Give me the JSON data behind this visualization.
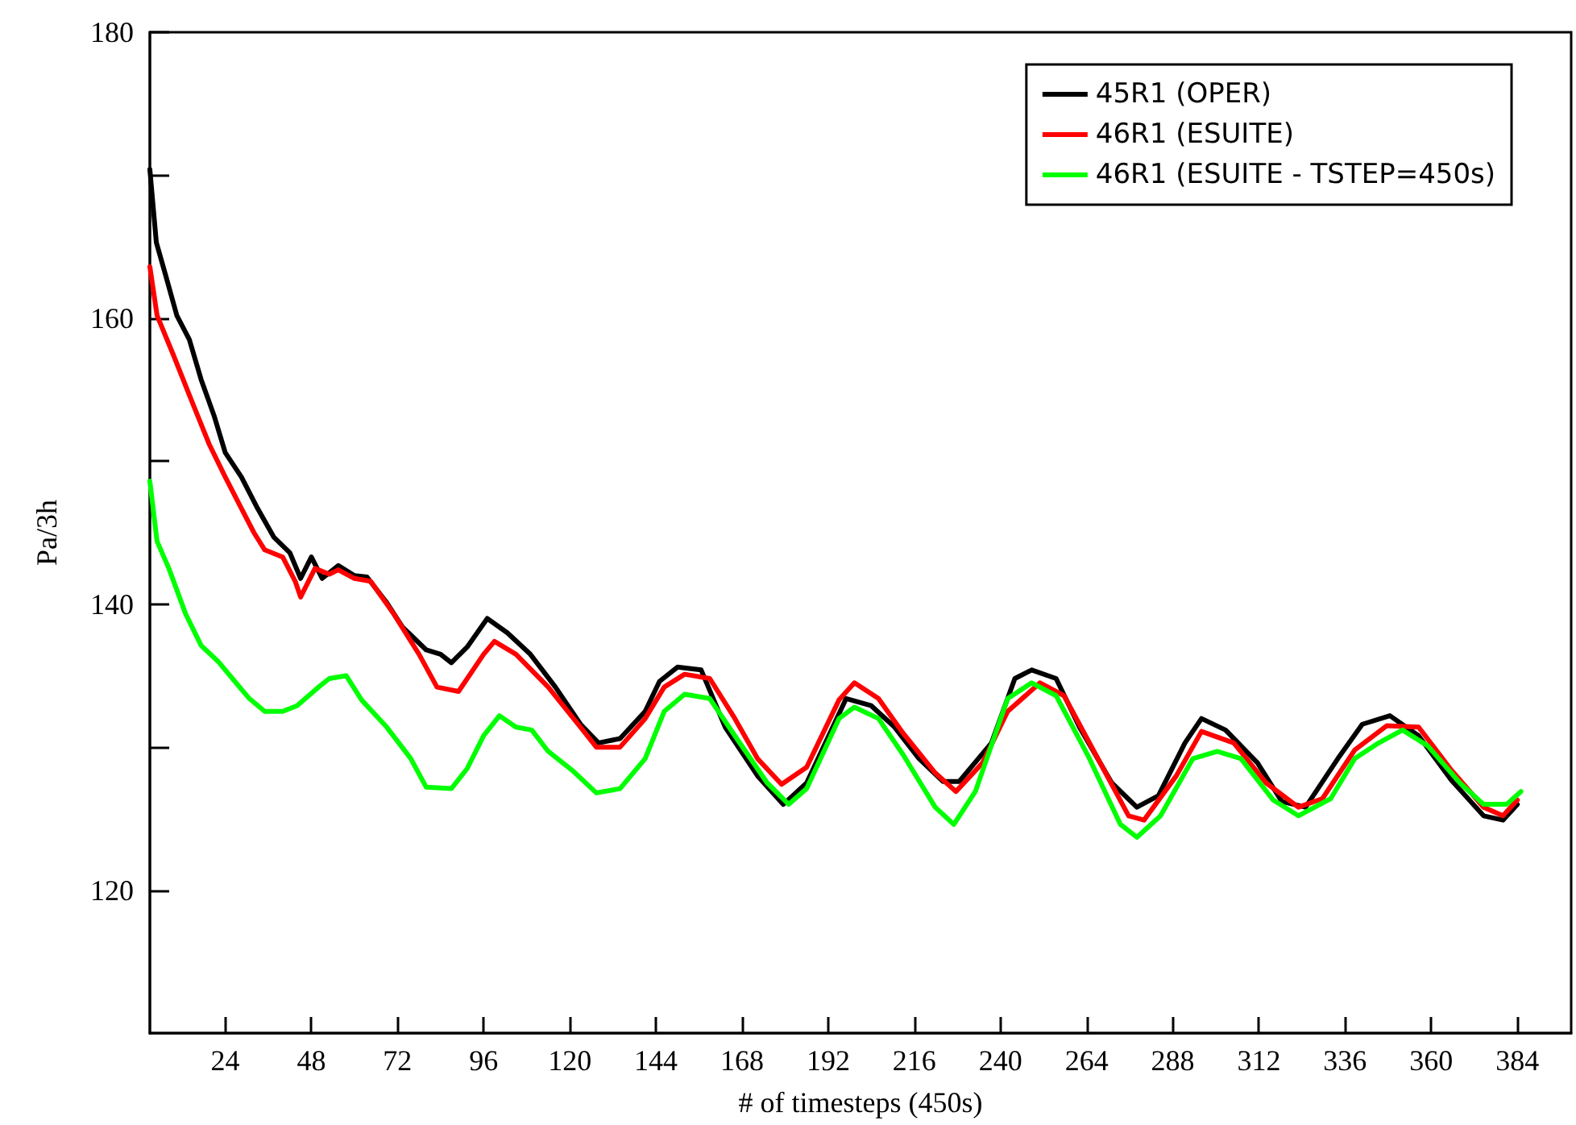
{
  "chart_data": {
    "type": "line",
    "xlabel": "# of timesteps (450s)",
    "ylabel": "Pa/3h",
    "xlim": [
      3,
      399
    ],
    "xticks": [
      24,
      48,
      72,
      96,
      120,
      144,
      168,
      192,
      216,
      240,
      264,
      288,
      312,
      336,
      360,
      384
    ],
    "ylim": [
      110,
      180
    ],
    "yticks": [
      120,
      {
        "value": 130,
        "label": null
      },
      140,
      {
        "value": 150,
        "label": null
      },
      160,
      {
        "value": 170,
        "label": null
      },
      180
    ],
    "grid": false,
    "legend": "top right",
    "marker": "none",
    "line_style": "solid",
    "series": [
      {
        "name": "45R1 (OPER)",
        "color": "#000000",
        "x": [
          3,
          4.8,
          7.4,
          10.5,
          14,
          17.3,
          21,
          24,
          28.5,
          33,
          37.5,
          42,
          45,
          48,
          51,
          55.5,
          60,
          63.5,
          69,
          73.4,
          80,
          84,
          87,
          91.4,
          97,
          102.6,
          109,
          116,
          123,
          128,
          134,
          141,
          145,
          150,
          156.6,
          163.3,
          172.3,
          179.5,
          186,
          197,
          204,
          210.5,
          217.3,
          224,
          228.5,
          237.5,
          244,
          248.7,
          255.5,
          262,
          271,
          278,
          284,
          291.4,
          296,
          302.7,
          311.6,
          318.4,
          325,
          334,
          340.8,
          348.5,
          356.5,
          365.6,
          374.6,
          380,
          384
        ],
        "values": [
          170.4,
          165.3,
          163,
          160.2,
          158.5,
          155.7,
          153.1,
          150.6,
          148.9,
          146.7,
          144.7,
          143.6,
          141.8,
          143.3,
          141.8,
          142.7,
          142,
          141.9,
          140.1,
          138.4,
          136.8,
          136.5,
          135.9,
          137,
          139,
          138,
          136.5,
          134.2,
          131.6,
          130.3,
          130.6,
          132.5,
          134.6,
          135.6,
          135.4,
          131.4,
          128,
          126,
          127.5,
          133.4,
          132.9,
          131.4,
          129.2,
          127.6,
          127.6,
          130.3,
          134.8,
          135.4,
          134.8,
          131.4,
          127.5,
          125.8,
          126.6,
          130.3,
          132,
          131.2,
          128.9,
          126.2,
          125.8,
          129.2,
          131.6,
          132.2,
          130.8,
          127.7,
          125.2,
          124.9,
          126
        ]
      },
      {
        "name": "46R1 (ESUITE)",
        "color": "#ff0000",
        "x": [
          3,
          5,
          9.6,
          15,
          19.5,
          24,
          28.5,
          32,
          35,
          40,
          43.5,
          45,
          49,
          53,
          55.5,
          60,
          64.5,
          71,
          78,
          83,
          89,
          96,
          99,
          105,
          114,
          123,
          127.4,
          134,
          141,
          146.3,
          152,
          159,
          166,
          172.3,
          179,
          186,
          195,
          199.3,
          206,
          212.8,
          221.8,
          227.6,
          235,
          242,
          251,
          257.7,
          266.7,
          275.7,
          280,
          289,
          296,
          305,
          314,
          323,
          329.7,
          338.7,
          347.6,
          356.5,
          365.6,
          374.6,
          380,
          384
        ],
        "values": [
          163.6,
          160.2,
          157.4,
          154,
          151.2,
          148.9,
          146.7,
          145,
          143.8,
          143.3,
          141.6,
          140.5,
          142.5,
          142.1,
          142.4,
          141.8,
          141.6,
          139.3,
          136.5,
          134.2,
          133.9,
          136.5,
          137.4,
          136.5,
          134.2,
          131.4,
          130,
          130,
          132,
          134.2,
          135.1,
          134.8,
          132,
          129.2,
          127.4,
          128.6,
          133.3,
          134.5,
          133.4,
          131,
          128.2,
          126.9,
          128.9,
          132.5,
          134.5,
          133.6,
          129.4,
          125.2,
          124.9,
          128,
          131.1,
          130.3,
          127.5,
          125.8,
          126.4,
          129.8,
          131.5,
          131.4,
          128.4,
          125.8,
          125.2,
          126.3
        ]
      },
      {
        "name": "46R1 (ESUITE - TSTEP=450s)",
        "color": "#00ff00",
        "x": [
          3,
          5,
          8.3,
          13,
          17.3,
          22,
          26,
          30.7,
          35,
          40,
          44,
          50,
          53,
          57.7,
          62,
          69,
          75.7,
          80,
          87,
          91.4,
          96,
          100.4,
          105,
          109.4,
          114,
          120.6,
          127.4,
          134,
          141,
          146.3,
          152,
          159,
          166,
          175,
          181,
          186,
          195,
          199.3,
          206,
          212.8,
          221.8,
          227,
          233,
          242,
          248.7,
          255.5,
          264.4,
          273.4,
          278,
          284.6,
          293.6,
          300.4,
          307,
          316,
          323,
          332,
          338.7,
          345.4,
          352,
          359,
          368,
          374.6,
          381,
          385
        ],
        "values": [
          148.6,
          144.4,
          142.5,
          139.3,
          137.1,
          136,
          134.8,
          133.4,
          132.5,
          132.5,
          132.9,
          134.2,
          134.8,
          135,
          133.3,
          131.4,
          129.2,
          127.2,
          127.1,
          128.5,
          130.8,
          132.2,
          131.4,
          131.2,
          129.7,
          128.4,
          126.8,
          127.1,
          129.2,
          132.5,
          133.7,
          133.4,
          130.8,
          127.5,
          126,
          127.1,
          132,
          132.8,
          132,
          129.5,
          125.8,
          124.6,
          126.9,
          133.4,
          134.5,
          133.6,
          129.4,
          124.6,
          123.7,
          125.2,
          129.2,
          129.7,
          129.2,
          126.3,
          125.2,
          126.4,
          129.2,
          130.3,
          131.2,
          130.1,
          127.5,
          126,
          126,
          126.9
        ]
      }
    ]
  }
}
